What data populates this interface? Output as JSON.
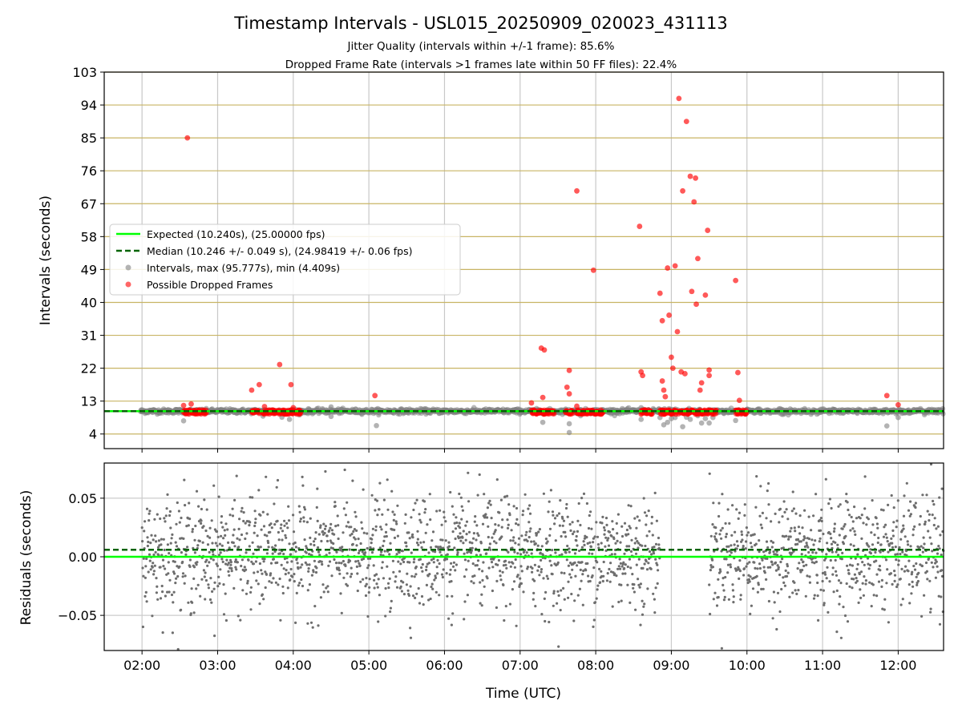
{
  "figure": {
    "title": "Timestamp Intervals - USL015_20250909_020023_431113",
    "subtitle1": "Jitter Quality (intervals within +/-1 frame): 85.6%",
    "subtitle2": "Dropped Frame Rate (intervals >1 frames late within 50 FF files): 22.4%"
  },
  "chart_data": [
    {
      "type": "scatter",
      "ylabel": "Intervals (seconds)",
      "xlim": [
        1.5,
        12.6
      ],
      "ylim": [
        0,
        103
      ],
      "yticks": [
        4,
        13,
        22,
        31,
        40,
        49,
        58,
        67,
        76,
        85,
        94,
        103
      ],
      "grid": true,
      "legend_position": "center-left",
      "legend": [
        "Expected (10.240s), (25.00000 fps)",
        "Median (10.246 +/- 0.049 s), (24.98419 +/- 0.06 fps)",
        "Intervals, max (95.777s), min (4.409s)",
        "Possible Dropped Frames"
      ],
      "expected": 10.24,
      "median": 10.246,
      "colors": {
        "expected": "#00ff00",
        "median": "#006400",
        "intervals": "#808080",
        "dropped": "#ff0000",
        "hgrid": "#c8b464"
      },
      "series": [
        {
          "name": "Intervals, max (95.777s), min (4.409s)",
          "points": [
            [
              2.0,
              10.2
            ],
            [
              2.55,
              7.6
            ],
            [
              3.6,
              8.9
            ],
            [
              3.85,
              8.6
            ],
            [
              3.95,
              8.0
            ],
            [
              4.5,
              11.4
            ],
            [
              4.5,
              8.8
            ],
            [
              5.1,
              6.3
            ],
            [
              5.8,
              10.3
            ],
            [
              7.3,
              7.2
            ],
            [
              7.65,
              4.4
            ],
            [
              7.65,
              6.8
            ],
            [
              7.8,
              9.0
            ],
            [
              8.4,
              10.5
            ],
            [
              8.6,
              11.2
            ],
            [
              8.6,
              8.0
            ],
            [
              8.85,
              8.5
            ],
            [
              8.9,
              6.5
            ],
            [
              8.95,
              7.2
            ],
            [
              9.0,
              8.2
            ],
            [
              9.05,
              8.5
            ],
            [
              9.15,
              6.0
            ],
            [
              9.2,
              8.6
            ],
            [
              9.25,
              8.0
            ],
            [
              9.35,
              9.0
            ],
            [
              9.4,
              7.0
            ],
            [
              9.45,
              8.2
            ],
            [
              9.5,
              7.0
            ],
            [
              9.55,
              8.5
            ],
            [
              9.85,
              7.7
            ],
            [
              10.2,
              10.1
            ],
            [
              11.85,
              6.2
            ],
            [
              11.85,
              10.4
            ],
            [
              12.0,
              8.5
            ],
            [
              12.4,
              10.6
            ]
          ]
        },
        {
          "name": "Possible Dropped Frames",
          "points": [
            [
              2.6,
              85.0
            ],
            [
              2.55,
              11.8
            ],
            [
              2.65,
              12.2
            ],
            [
              3.45,
              16.0
            ],
            [
              3.55,
              17.5
            ],
            [
              3.62,
              11.5
            ],
            [
              3.82,
              23.0
            ],
            [
              3.97,
              17.5
            ],
            [
              4.0,
              11.2
            ],
            [
              5.08,
              14.5
            ],
            [
              7.15,
              12.5
            ],
            [
              7.28,
              27.5
            ],
            [
              7.32,
              27.0
            ],
            [
              7.3,
              14.0
            ],
            [
              7.62,
              16.8
            ],
            [
              7.65,
              21.4
            ],
            [
              7.65,
              15.0
            ],
            [
              7.75,
              70.5
            ],
            [
              7.75,
              11.6
            ],
            [
              7.97,
              48.8
            ],
            [
              8.58,
              60.8
            ],
            [
              8.6,
              21.0
            ],
            [
              8.62,
              20.0
            ],
            [
              8.85,
              42.5
            ],
            [
              8.88,
              35.0
            ],
            [
              8.88,
              18.5
            ],
            [
              8.9,
              16.0
            ],
            [
              8.92,
              14.2
            ],
            [
              8.95,
              49.4
            ],
            [
              8.97,
              36.5
            ],
            [
              9.0,
              25.0
            ],
            [
              9.02,
              22.0
            ],
            [
              9.05,
              50.0
            ],
            [
              9.08,
              32.0
            ],
            [
              9.1,
              95.8
            ],
            [
              9.13,
              21.0
            ],
            [
              9.15,
              70.5
            ],
            [
              9.18,
              20.5
            ],
            [
              9.2,
              89.5
            ],
            [
              9.25,
              74.5
            ],
            [
              9.27,
              43.0
            ],
            [
              9.3,
              67.5
            ],
            [
              9.32,
              74.0
            ],
            [
              9.33,
              39.5
            ],
            [
              9.35,
              52.0
            ],
            [
              9.38,
              16.0
            ],
            [
              9.4,
              18.0
            ],
            [
              9.45,
              42.0
            ],
            [
              9.48,
              59.7
            ],
            [
              9.5,
              21.5
            ],
            [
              9.5,
              20.0
            ],
            [
              9.85,
              46.0
            ],
            [
              9.88,
              20.8
            ],
            [
              9.9,
              13.2
            ],
            [
              11.85,
              14.5
            ],
            [
              12.0,
              12.0
            ]
          ]
        }
      ],
      "dense_bands": [
        [
          2.55,
          2.85
        ],
        [
          3.45,
          3.55
        ],
        [
          3.6,
          4.1
        ],
        [
          7.15,
          7.45
        ],
        [
          7.6,
          7.7
        ],
        [
          7.75,
          8.1
        ],
        [
          8.6,
          8.75
        ],
        [
          8.85,
          9.6
        ],
        [
          9.85,
          10.0
        ]
      ]
    },
    {
      "type": "scatter",
      "xlabel": "Time (UTC)",
      "ylabel": "Residuals (seconds)",
      "xlim": [
        1.5,
        12.6
      ],
      "ylim": [
        -0.08,
        0.08
      ],
      "yticks": [
        -0.05,
        0.0,
        0.05
      ],
      "ytick_labels": [
        "−0.05",
        "0.00",
        "0.05"
      ],
      "xticks": [
        2,
        3,
        4,
        5,
        6,
        7,
        8,
        9,
        10,
        11,
        12
      ],
      "xtick_labels": [
        "02:00",
        "03:00",
        "04:00",
        "05:00",
        "06:00",
        "07:00",
        "08:00",
        "09:00",
        "10:00",
        "11:00",
        "12:00"
      ],
      "grid": true,
      "zero_line": 0.0,
      "median_line": 0.006,
      "residual_std": 0.024,
      "gap": [
        8.85,
        9.5
      ],
      "colors": {
        "points": "#6e6e6e",
        "zero": "#00ff00",
        "median": "#006400",
        "grid": "#cccccc"
      }
    }
  ]
}
